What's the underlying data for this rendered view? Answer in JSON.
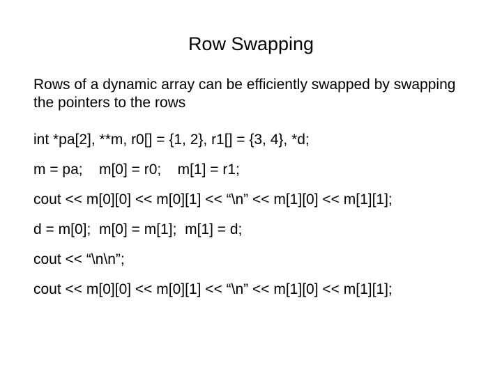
{
  "title": "Row Swapping",
  "description": "Rows of a dynamic array can be efficiently swapped by swapping the pointers to the rows",
  "lines": {
    "l1": "int *pa[2], **m, r0[] = {1, 2}, r1[] = {3, 4}, *d;",
    "l2": "m = pa;    m[0] = r0;    m[1] = r1;",
    "l3": "cout << m[0][0] << m[0][1] << “\\n” << m[1][0] << m[1][1];",
    "l4": "d = m[0];  m[0] = m[1];  m[1] = d;",
    "l5": "cout << “\\n\\n”;",
    "l6": "cout << m[0][0] << m[0][1] << “\\n” << m[1][0] << m[1][1];"
  },
  "styling": {
    "background_color": "#ffffff",
    "text_color": "#000000",
    "title_fontsize": 27,
    "body_fontsize": 21,
    "font_family": "Arial, Helvetica, sans-serif"
  }
}
